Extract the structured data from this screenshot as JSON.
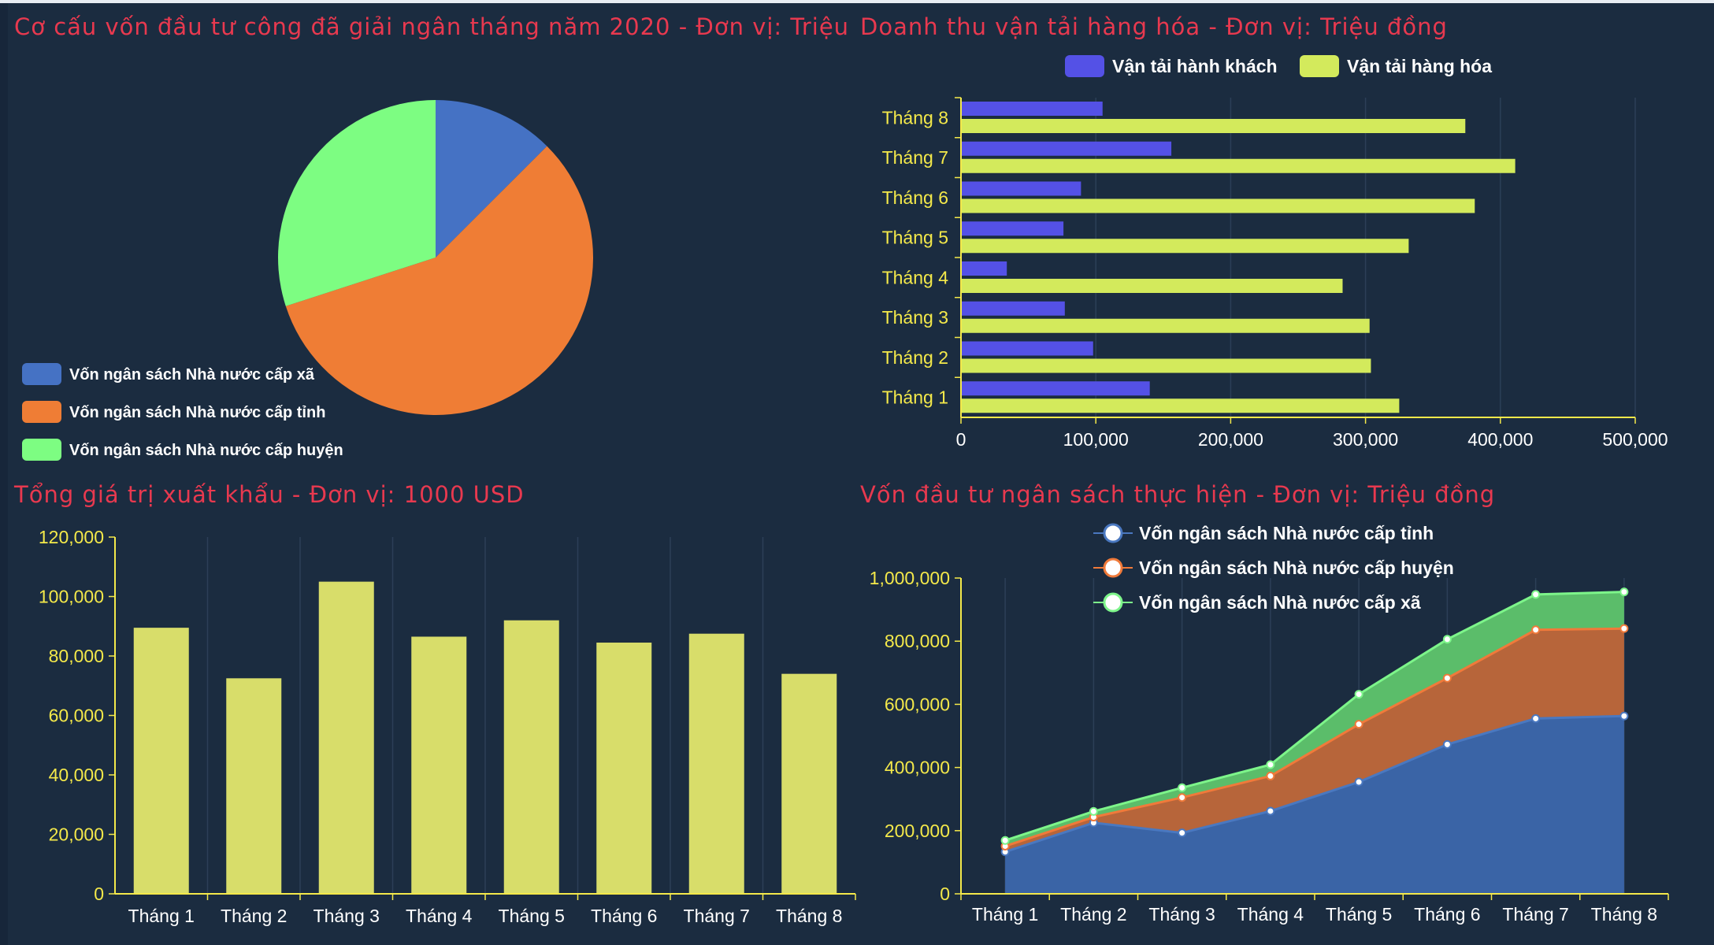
{
  "colors": {
    "background": "#1b2c40",
    "title": "#e8394f",
    "axis_label_yellow": "#f4e94a"
  },
  "chart_data": [
    {
      "id": "pie",
      "type": "pie",
      "title": "Cơ cấu vốn đầu tư công đã giải ngân tháng năm 2020 - Đơn vị: Triệu",
      "legend_position": "bottom-left",
      "slices": [
        {
          "label": "Vốn ngân sách Nhà nước cấp xã",
          "value": 12.5,
          "color": "#4572c4"
        },
        {
          "label": "Vốn ngân sách Nhà nước cấp tỉnh",
          "value": 57.5,
          "color": "#ef7d35"
        },
        {
          "label": "Vốn ngân sách Nhà nước cấp huyện",
          "value": 30,
          "color": "#7dfd82"
        }
      ]
    },
    {
      "id": "hbar",
      "type": "bar",
      "orientation": "horizontal",
      "title": "Doanh thu vận tải hàng hóa - Đơn vị: Triệu đồng",
      "legend_position": "top",
      "categories": [
        "Tháng 1",
        "Tháng 2",
        "Tháng 3",
        "Tháng 4",
        "Tháng 5",
        "Tháng 6",
        "Tháng 7",
        "Tháng 8"
      ],
      "series": [
        {
          "name": "Vận tải hành khách",
          "color": "#5451e6",
          "values": [
            140000,
            98000,
            77000,
            34000,
            76000,
            89000,
            156000,
            105000
          ]
        },
        {
          "name": "Vận tải hàng hóa",
          "color": "#d3ea5c",
          "values": [
            325000,
            304000,
            303000,
            283000,
            332000,
            381000,
            411000,
            374000
          ]
        }
      ],
      "xlim": [
        0,
        500000
      ],
      "x_ticks": [
        0,
        100000,
        200000,
        300000,
        400000,
        500000
      ],
      "x_tick_labels": [
        "0",
        "100,000",
        "200,000",
        "300,000",
        "400,000",
        "500,000"
      ],
      "grid": true
    },
    {
      "id": "vbar",
      "type": "bar",
      "title": "Tổng giá trị xuất khẩu - Đơn vị: 1000 USD",
      "categories": [
        "Tháng 1",
        "Tháng 2",
        "Tháng 3",
        "Tháng 4",
        "Tháng 5",
        "Tháng 6",
        "Tháng 7",
        "Tháng 8"
      ],
      "values": [
        89500,
        72500,
        105000,
        86500,
        92000,
        84500,
        87500,
        74000
      ],
      "color": "#d8dd6a",
      "ylim": [
        0,
        120000
      ],
      "y_ticks": [
        0,
        20000,
        40000,
        60000,
        80000,
        100000,
        120000
      ],
      "y_tick_labels": [
        "0",
        "20,000",
        "40,000",
        "60,000",
        "80,000",
        "100,000",
        "120,000"
      ],
      "grid": true
    },
    {
      "id": "area",
      "type": "area",
      "stacked": true,
      "title": "Vốn đầu tư ngân sách thực hiện - Đơn vị: Triệu đồng",
      "legend_position": "top",
      "categories": [
        "Tháng 1",
        "Tháng 2",
        "Tháng 3",
        "Tháng 4",
        "Tháng 5",
        "Tháng 6",
        "Tháng 7",
        "Tháng 8"
      ],
      "series": [
        {
          "name": "Vốn ngân sách Nhà nước cấp tỉnh",
          "color": "#4a78c0",
          "fill": "#3a64a6",
          "values": [
            133000,
            225000,
            193000,
            262000,
            354000,
            473000,
            555000,
            563000
          ]
        },
        {
          "name": "Vốn ngân sách Nhà nước cấp huyện",
          "color": "#f07a3a",
          "fill": "#b7653a",
          "values": [
            18000,
            18000,
            112000,
            111000,
            183000,
            210000,
            281000,
            277000
          ]
        },
        {
          "name": "Vốn ngân sách Nhà nước cấp xã",
          "color": "#7df58a",
          "fill": "#5bbd6a",
          "values": [
            18000,
            18000,
            31000,
            36000,
            95000,
            123000,
            112000,
            116000
          ]
        }
      ],
      "ylim": [
        0,
        1000000
      ],
      "y_ticks": [
        0,
        200000,
        400000,
        600000,
        800000,
        1000000
      ],
      "y_tick_labels": [
        "0",
        "200,000",
        "400,000",
        "600,000",
        "800,000",
        "1,000,000"
      ],
      "grid": true
    }
  ]
}
